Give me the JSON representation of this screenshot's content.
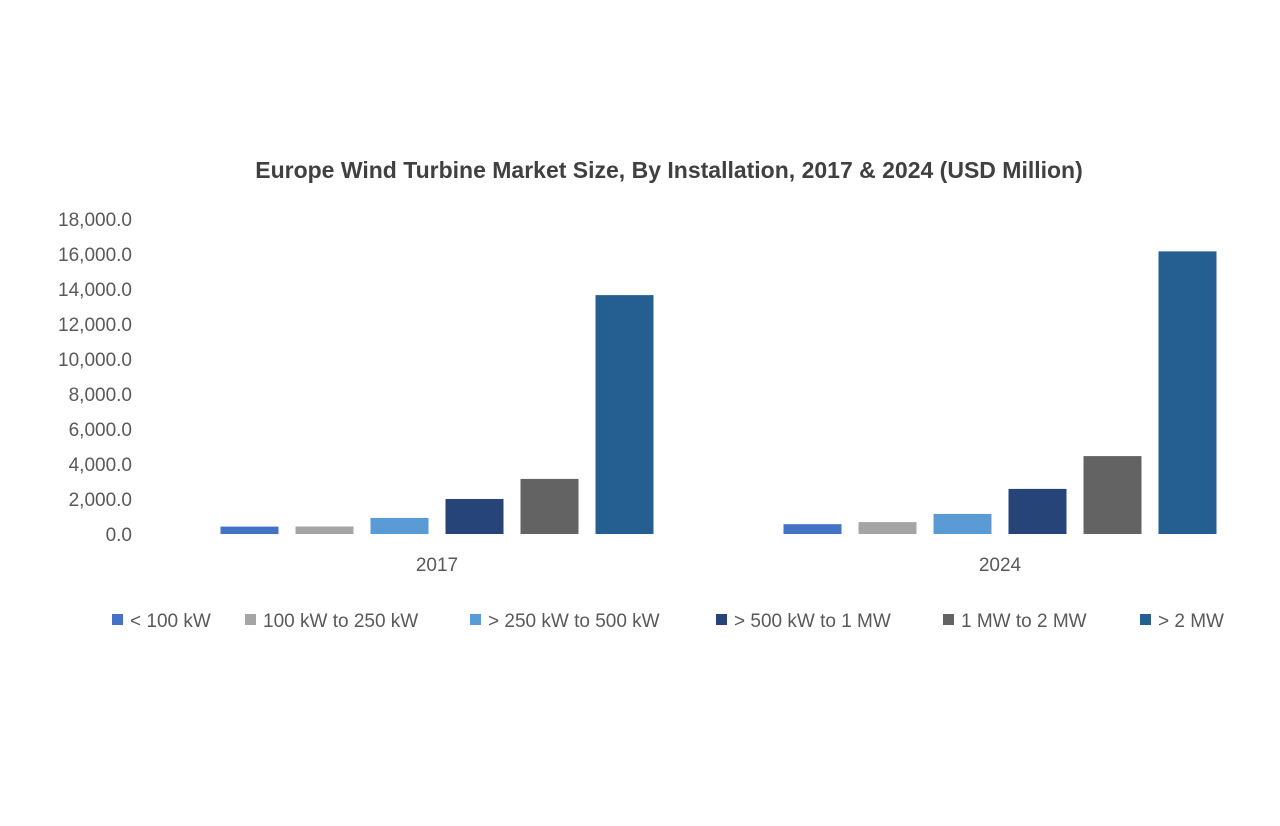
{
  "chart_data": {
    "type": "bar",
    "title": "Europe Wind Turbine Market Size, By Installation, 2017 & 2024 (USD Million)",
    "xlabel": "",
    "ylabel": "",
    "categories": [
      "2017",
      "2024"
    ],
    "ylim": [
      0,
      18000
    ],
    "yticks": [
      "0.0",
      "2,000.0",
      "4,000.0",
      "6,000.0",
      "8,000.0",
      "10,000.0",
      "12,000.0",
      "14,000.0",
      "16,000.0",
      "18,000.0"
    ],
    "grid": false,
    "legend_position": "bottom",
    "series": [
      {
        "name": "< 100 kW",
        "color": "#4472C4",
        "values": [
          420,
          560
        ]
      },
      {
        "name": "100 kW to 250 kW",
        "color": "#A5A5A5",
        "values": [
          430,
          680
        ]
      },
      {
        "name": "> 250 kW to 500 kW",
        "color": "#5B9BD5",
        "values": [
          920,
          1150
        ]
      },
      {
        "name": "> 500 kW to 1 MW",
        "color": "#264478",
        "values": [
          2000,
          2580
        ]
      },
      {
        "name": "1 MW to 2 MW",
        "color": "#636363",
        "values": [
          3150,
          4450
        ]
      },
      {
        "name": "> 2 MW",
        "color": "#255E91",
        "values": [
          13650,
          16150
        ]
      }
    ]
  }
}
